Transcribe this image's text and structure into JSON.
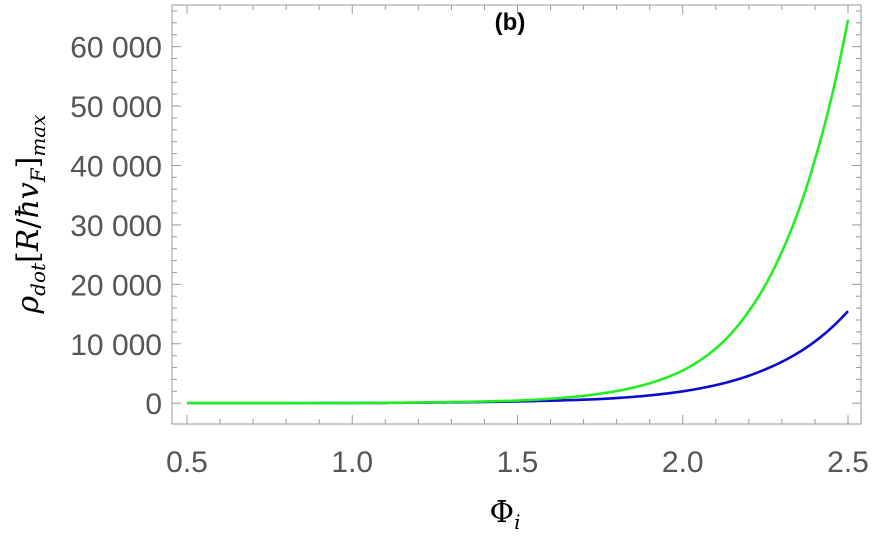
{
  "chart_data": {
    "type": "line",
    "title": "(b)",
    "xlabel": {
      "main": "Φ",
      "sub": "i"
    },
    "ylabel": {
      "rho": "ρ",
      "rho_sub": "dot",
      "open": "[",
      "R": "R",
      "slash": "/",
      "hbar": "ħ",
      "v": "v",
      "v_sub": "F",
      "close": "]",
      "close_sub": "max"
    },
    "xlim": [
      0.5,
      2.5
    ],
    "ylim": [
      -3500,
      67000
    ],
    "x_ticks": [
      0.5,
      1.0,
      1.5,
      2.0,
      2.5
    ],
    "x_tick_labels": [
      "0.5",
      "1.0",
      "1.5",
      "2.0",
      "2.5"
    ],
    "y_ticks": [
      0,
      10000,
      20000,
      30000,
      40000,
      50000,
      60000
    ],
    "y_tick_labels": [
      "0",
      "10 000",
      "20 000",
      "30 000",
      "40 000",
      "50 000",
      "60 000"
    ],
    "grid": false,
    "series": [
      {
        "color": "#0a0ad2",
        "x": [
          0.5,
          1.0,
          1.25,
          1.5,
          1.75,
          2.0,
          2.25,
          2.5
        ],
        "y": [
          0,
          30,
          120,
          300,
          700,
          2000,
          5700,
          15500
        ]
      },
      {
        "color": "#22ee22",
        "x": [
          0.5,
          1.0,
          1.25,
          1.5,
          1.75,
          2.0,
          2.1,
          2.2,
          2.3,
          2.4,
          2.5
        ],
        "y": [
          0,
          40,
          160,
          450,
          1600,
          5500,
          9200,
          15500,
          25500,
          41000,
          64500
        ]
      }
    ]
  }
}
